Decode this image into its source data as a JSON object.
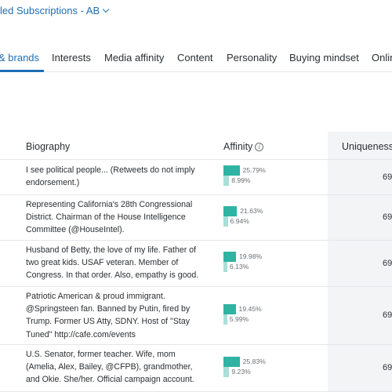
{
  "header": {
    "title": "led Subscriptions - AB"
  },
  "tabs": [
    {
      "label": "& brands",
      "active": true
    },
    {
      "label": "Interests"
    },
    {
      "label": "Media affinity"
    },
    {
      "label": "Content"
    },
    {
      "label": "Personality"
    },
    {
      "label": "Buying mindset"
    },
    {
      "label": "Onlin"
    }
  ],
  "table": {
    "columns": {
      "biography": "Biography",
      "affinity": "Affinity",
      "uniqueness": "Uniqueness"
    },
    "rows": [
      {
        "bio": "I see political people... (Retweets do not imply endorsement.)",
        "affinity_a": "25.79%",
        "affinity_b": "8.99%",
        "affinity_a_val": 25.79,
        "affinity_b_val": 8.99,
        "uniqueness": "69"
      },
      {
        "bio": "Representing California's 28th Congressional District. Chairman of the House Intelligence Committee (@HouseIntel).",
        "affinity_a": "21.63%",
        "affinity_b": "6.94%",
        "affinity_a_val": 21.63,
        "affinity_b_val": 6.94,
        "uniqueness": "69"
      },
      {
        "bio": "Husband of Betty, the love of my life. Father of two great kids. USAF veteran. Member of Congress. In that order. Also, empathy is good.",
        "affinity_a": "19.98%",
        "affinity_b": "6.13%",
        "affinity_a_val": 19.98,
        "affinity_b_val": 6.13,
        "uniqueness": "69"
      },
      {
        "bio": "Patriotic American & proud immigrant. @Springsteen fan. Banned by Putin, fired by Trump. Former US Atty, SDNY. Host of \"Stay Tuned\" http://cafe.com/events",
        "affinity_a": "19.45%",
        "affinity_b": "5.99%",
        "affinity_a_val": 19.45,
        "affinity_b_val": 5.99,
        "uniqueness": "69"
      },
      {
        "bio": "U.S. Senator, former teacher. Wife, mom (Amelia, Alex, Bailey, @CFPB), grandmother, and Okie. She/her. Official campaign account.",
        "affinity_a": "25.83%",
        "affinity_b": "9.23%",
        "affinity_a_val": 25.83,
        "affinity_b_val": 9.23,
        "uniqueness": "69"
      }
    ]
  },
  "colors": {
    "accent": "#1f6fb5",
    "bar_primary": "#2fb3a3",
    "bar_secondary": "#a9e0d8"
  },
  "icons": {
    "title_dropdown": "chevron-down-icon",
    "affinity_info": "info-icon"
  }
}
